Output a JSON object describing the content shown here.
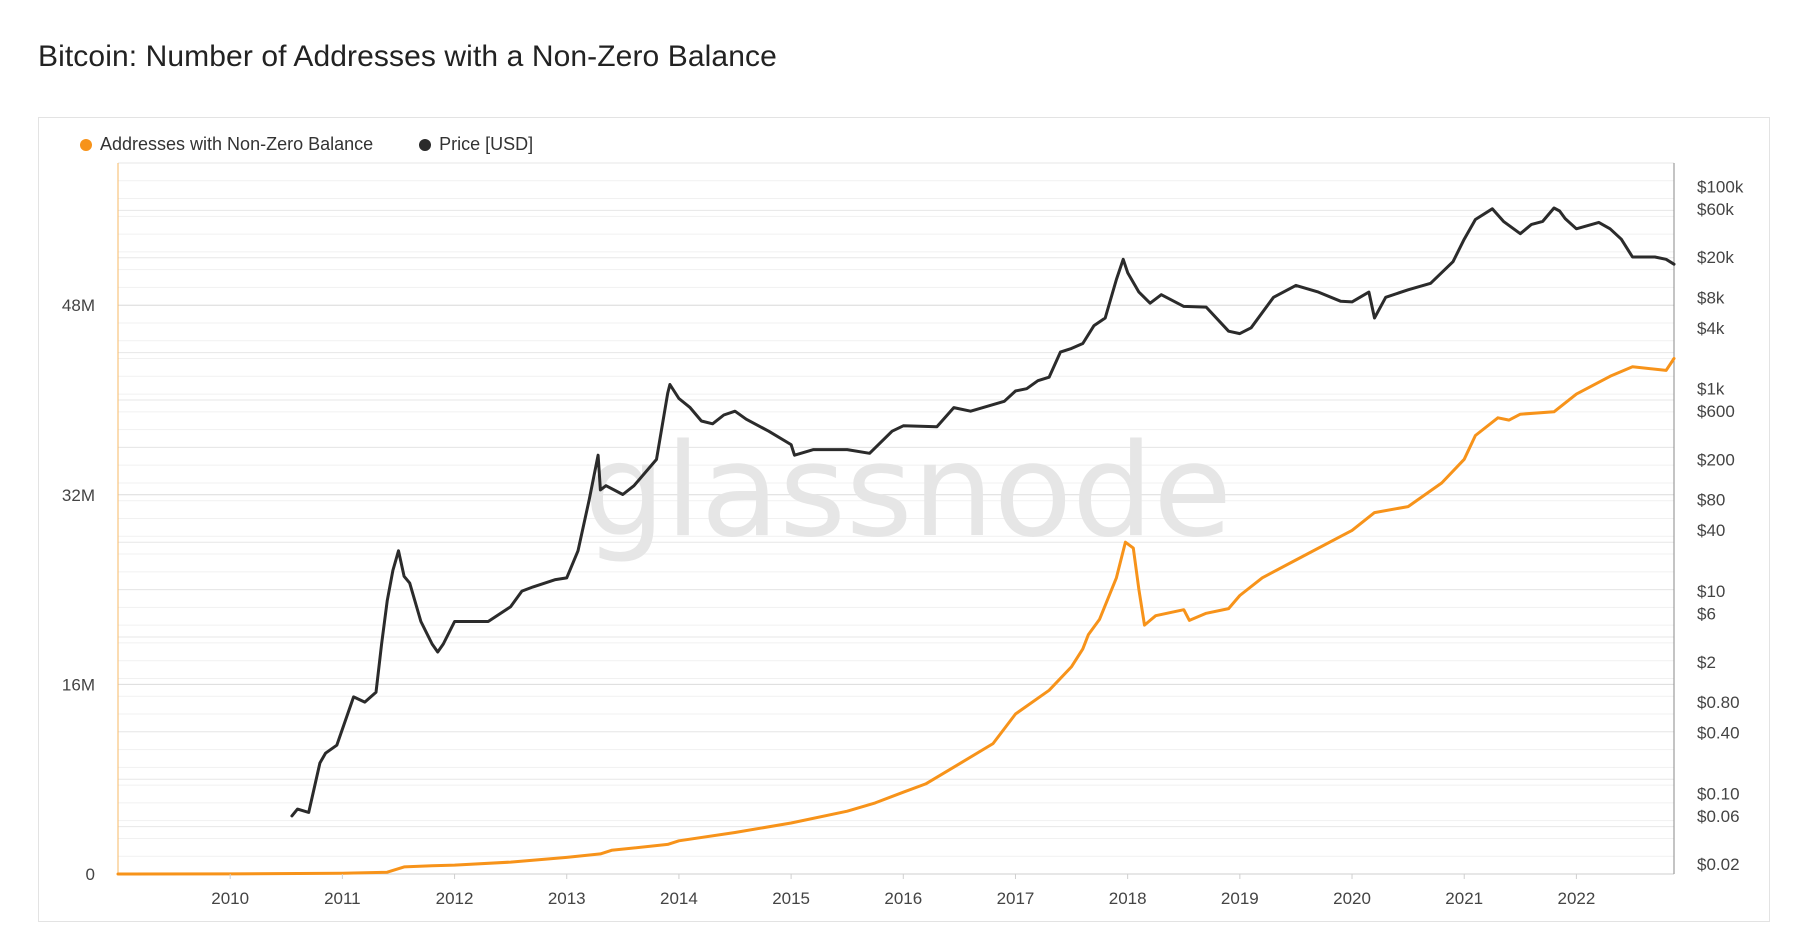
{
  "title": "Bitcoin: Number of Addresses with a Non-Zero Balance",
  "watermark": "glassnode",
  "legend": [
    {
      "label": "Addresses with Non-Zero Balance",
      "color": "#f7931a"
    },
    {
      "label": "Price [USD]",
      "color": "#2b2b2b"
    }
  ],
  "chart_data": {
    "type": "line",
    "title": "Bitcoin: Number of Addresses with a Non-Zero Balance",
    "xlabel": "",
    "ylabel": "",
    "x_range": [
      2009.0,
      2022.87
    ],
    "x_ticks": [
      "2010",
      "2011",
      "2012",
      "2013",
      "2014",
      "2015",
      "2016",
      "2017",
      "2018",
      "2019",
      "2020",
      "2021",
      "2022"
    ],
    "left_axis": {
      "range": [
        0,
        60000000
      ],
      "ticks": [
        0,
        16000000,
        32000000,
        48000000
      ],
      "tick_labels": [
        "0",
        "16M",
        "32M",
        "48M"
      ]
    },
    "right_axis": {
      "scale": "log",
      "range": [
        0.016,
        170000
      ],
      "ticks": [
        0.02,
        0.06,
        0.1,
        0.4,
        0.8,
        2,
        6,
        10,
        40,
        80,
        200,
        600,
        1000,
        4000,
        8000,
        20000,
        60000,
        100000
      ],
      "tick_labels": [
        "$0.02",
        "$0.06",
        "$0.10",
        "$0.40",
        "$0.80",
        "$2",
        "$6",
        "$10",
        "$40",
        "$80",
        "$200",
        "$600",
        "$1k",
        "$4k",
        "$8k",
        "$20k",
        "$60k",
        "$100k"
      ]
    },
    "grid": true,
    "legend_position": "top-left",
    "series": [
      {
        "name": "Addresses with Non-Zero Balance",
        "axis": "left",
        "color": "#f7931a",
        "x": [
          2009.0,
          2010.0,
          2011.0,
          2011.4,
          2011.55,
          2011.8,
          2012.0,
          2012.5,
          2013.0,
          2013.3,
          2013.4,
          2013.9,
          2014.0,
          2014.5,
          2015.0,
          2015.5,
          2015.75,
          2016.0,
          2016.2,
          2016.5,
          2016.8,
          2017.0,
          2017.3,
          2017.5,
          2017.6,
          2017.65,
          2017.75,
          2017.9,
          2017.98,
          2018.05,
          2018.1,
          2018.15,
          2018.2,
          2018.25,
          2018.5,
          2018.55,
          2018.7,
          2018.9,
          2019.0,
          2019.2,
          2019.5,
          2019.9,
          2020.0,
          2020.2,
          2020.5,
          2020.8,
          2021.0,
          2021.1,
          2021.3,
          2021.4,
          2021.5,
          2021.8,
          2022.0,
          2022.3,
          2022.5,
          2022.8,
          2022.87
        ],
        "y": [
          0,
          5000,
          60000,
          150000,
          600000,
          700000,
          750000,
          1000000,
          1400000,
          1700000,
          2000000,
          2500000,
          2800000,
          3500000,
          4300000,
          5300000,
          6000000,
          6900000,
          7600000,
          9300000,
          11000000,
          13500000,
          15500000,
          17500000,
          19000000,
          20200000,
          21500000,
          25000000,
          28000000,
          27500000,
          24000000,
          21000000,
          21400000,
          21800000,
          22300000,
          21400000,
          22000000,
          22400000,
          23500000,
          25000000,
          26500000,
          28500000,
          29000000,
          30500000,
          31000000,
          33000000,
          35000000,
          37000000,
          38500000,
          38300000,
          38800000,
          39000000,
          40500000,
          42000000,
          42800000,
          42500000,
          43500000
        ]
      },
      {
        "name": "Price [USD]",
        "axis": "right",
        "color": "#2b2b2b",
        "x": [
          2010.55,
          2010.6,
          2010.7,
          2010.8,
          2010.85,
          2010.95,
          2011.1,
          2011.2,
          2011.3,
          2011.35,
          2011.4,
          2011.45,
          2011.5,
          2011.55,
          2011.6,
          2011.7,
          2011.8,
          2011.85,
          2011.9,
          2012.0,
          2012.1,
          2012.3,
          2012.5,
          2012.6,
          2012.7,
          2012.9,
          2013.0,
          2013.1,
          2013.2,
          2013.28,
          2013.3,
          2013.35,
          2013.5,
          2013.6,
          2013.8,
          2013.9,
          2013.92,
          2014.0,
          2014.1,
          2014.2,
          2014.3,
          2014.4,
          2014.5,
          2014.6,
          2014.8,
          2015.0,
          2015.03,
          2015.2,
          2015.5,
          2015.7,
          2015.9,
          2016.0,
          2016.3,
          2016.45,
          2016.6,
          2016.9,
          2017.0,
          2017.1,
          2017.2,
          2017.3,
          2017.4,
          2017.5,
          2017.6,
          2017.7,
          2017.8,
          2017.9,
          2017.96,
          2018.0,
          2018.1,
          2018.2,
          2018.3,
          2018.5,
          2018.7,
          2018.9,
          2019.0,
          2019.1,
          2019.3,
          2019.5,
          2019.7,
          2019.9,
          2020.0,
          2020.15,
          2020.2,
          2020.3,
          2020.5,
          2020.7,
          2020.9,
          2021.0,
          2021.1,
          2021.25,
          2021.35,
          2021.5,
          2021.6,
          2021.7,
          2021.8,
          2021.85,
          2021.9,
          2022.0,
          2022.2,
          2022.3,
          2022.4,
          2022.5,
          2022.7,
          2022.8,
          2022.87
        ],
        "y": [
          0.06,
          0.07,
          0.065,
          0.2,
          0.25,
          0.3,
          0.9,
          0.8,
          1.0,
          3.0,
          8.0,
          16.0,
          25.0,
          14.0,
          12.0,
          5.0,
          3.0,
          2.5,
          3.0,
          5.0,
          5.0,
          5.0,
          7.0,
          10.0,
          11.0,
          13.0,
          13.5,
          25.0,
          80.0,
          220.0,
          100.0,
          110.0,
          90.0,
          110.0,
          200.0,
          900.0,
          1100.0,
          800.0,
          650.0,
          480.0,
          450.0,
          550.0,
          600.0,
          500.0,
          380.0,
          280.0,
          220.0,
          250.0,
          250.0,
          230.0,
          380.0,
          430.0,
          420.0,
          650.0,
          600.0,
          750.0,
          950.0,
          1000.0,
          1200.0,
          1300.0,
          2300.0,
          2500.0,
          2800.0,
          4200.0,
          5000.0,
          12000.0,
          19000.0,
          14000.0,
          9000.0,
          7000.0,
          8500.0,
          6500.0,
          6400.0,
          3700.0,
          3500.0,
          4000.0,
          8000.0,
          10500.0,
          9000.0,
          7300.0,
          7200.0,
          9000.0,
          5000.0,
          8000.0,
          9500.0,
          11000.0,
          18000.0,
          30000.0,
          47000.0,
          60000.0,
          45000.0,
          34000.0,
          42000.0,
          45000.0,
          61000.0,
          57000.0,
          48000.0,
          38000.0,
          44000.0,
          38000.0,
          30000.0,
          20000.0,
          20000.0,
          19000.0,
          17000.0
        ]
      }
    ]
  }
}
